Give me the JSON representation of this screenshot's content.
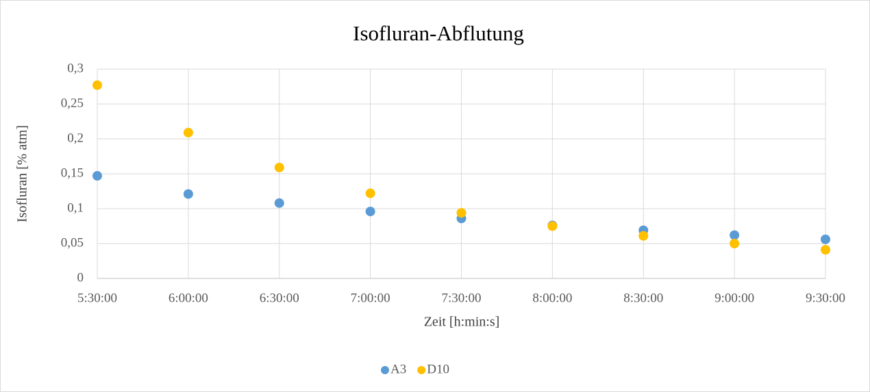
{
  "chart_data": {
    "type": "scatter",
    "title": "Isofluran-Abflutung",
    "x_label": "Zeit [h:min:s]",
    "y_label": "Isofluran [% atm]",
    "categories": [
      "5:30:00",
      "6:00:00",
      "6:30:00",
      "7:00:00",
      "7:30:00",
      "8:00:00",
      "8:30:00",
      "9:00:00",
      "9:30:00"
    ],
    "series": [
      {
        "name": "A3",
        "color": "#5b9bd5",
        "values": [
          0.147,
          0.121,
          0.108,
          0.096,
          0.086,
          0.076,
          0.069,
          0.062,
          0.056
        ]
      },
      {
        "name": "D10",
        "color": "#ffc000",
        "values": [
          0.277,
          0.209,
          0.159,
          0.122,
          0.094,
          0.075,
          0.061,
          0.05,
          0.041
        ]
      }
    ],
    "ylim": [
      0,
      0.3
    ],
    "yticks": [
      0,
      {
        "value": 0.05,
        "label": "0,05"
      },
      {
        "value": 0.1,
        "label": "0,1"
      },
      {
        "value": 0.15,
        "label": "0,15"
      },
      {
        "value": 0.2,
        "label": "0,2"
      },
      {
        "value": 0.25,
        "label": "0,25"
      },
      {
        "value": 0.3,
        "label": "0,3"
      }
    ],
    "grid": true,
    "legend": "bottom"
  }
}
